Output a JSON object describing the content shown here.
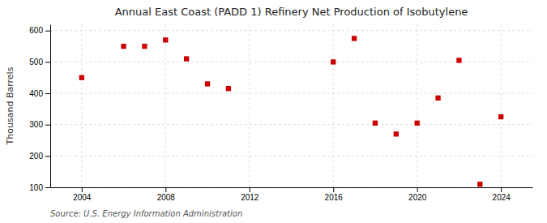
{
  "chart_data": {
    "type": "scatter",
    "title": "Annual East Coast (PADD 1) Refinery Net Production of Isobutylene",
    "ylabel": "Thousand Barrels",
    "annotations": [
      "Source: U.S. Energy Information Administration"
    ],
    "x": [
      2004,
      2006,
      2007,
      2008,
      2009,
      2010,
      2011,
      2016,
      2017,
      2018,
      2019,
      2020,
      2021,
      2022,
      2023,
      2024
    ],
    "values": [
      450,
      550,
      550,
      570,
      510,
      430,
      415,
      500,
      575,
      305,
      270,
      305,
      385,
      505,
      110,
      325
    ],
    "color": "#cc0000",
    "marker": "square",
    "xlim": [
      2002.5,
      2025.5
    ],
    "ylim": [
      100,
      620
    ],
    "xticks": [
      2004,
      2008,
      2012,
      2016,
      2020,
      2024
    ],
    "yticks": [
      100,
      200,
      300,
      400,
      500,
      600
    ],
    "grid": true
  }
}
